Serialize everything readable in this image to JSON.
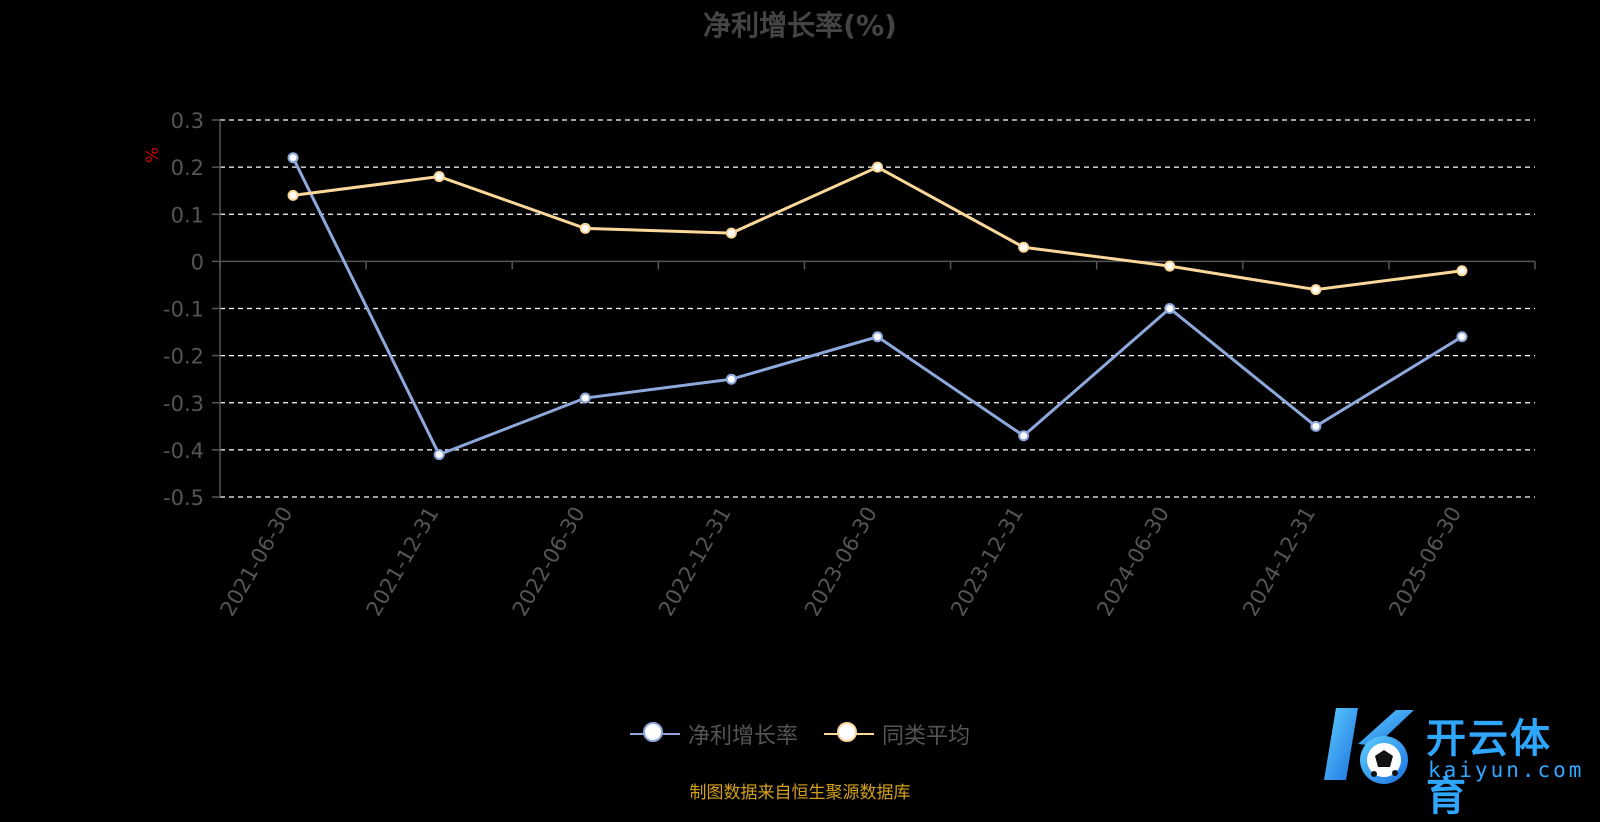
{
  "colors": {
    "series1": "#8ea8dc",
    "series2": "#fbd79a",
    "grid": "#ffffff",
    "axis": "#555555",
    "tick_text": "#555555",
    "unit": "#cc0000",
    "source": "#d4a017",
    "logo": "#2fa7ff"
  },
  "chart_data": {
    "type": "line",
    "title": "净利增长率(%)",
    "ylabel": "%",
    "ylim": [
      -0.5,
      0.3
    ],
    "yticks": [
      "0.3",
      "0.2",
      "0.1",
      "0",
      "-0.1",
      "-0.2",
      "-0.3",
      "-0.4",
      "-0.5"
    ],
    "categories": [
      "2021-06-30",
      "2021-12-31",
      "2022-06-30",
      "2022-12-31",
      "2023-06-30",
      "2023-12-31",
      "2024-06-30",
      "2024-12-31",
      "2025-06-30"
    ],
    "series": [
      {
        "name": "净利增长率",
        "values": [
          0.22,
          -0.41,
          -0.29,
          -0.25,
          -0.16,
          -0.37,
          -0.1,
          -0.35,
          -0.16
        ]
      },
      {
        "name": "同类平均",
        "values": [
          0.14,
          0.18,
          0.07,
          0.06,
          0.2,
          0.03,
          -0.01,
          -0.06,
          -0.02
        ]
      }
    ],
    "grid": true,
    "legend_position": "bottom"
  },
  "source_text": "制图数据来自恒生聚源数据库",
  "logo": {
    "cn": "开云体育",
    "en": "kaiyun.com"
  }
}
